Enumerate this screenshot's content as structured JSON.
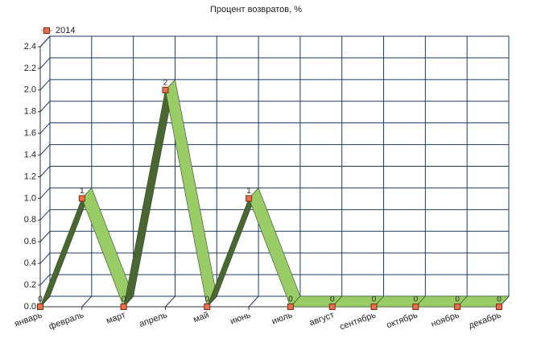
{
  "chart_data": {
    "type": "line3d",
    "title": "Процент возвратов, %",
    "categories": [
      "январь",
      "февраль",
      "март",
      "апрель",
      "май",
      "июнь",
      "июль",
      "август",
      "сентябрь",
      "октябрь",
      "ноябрь",
      "декабрь"
    ],
    "series": [
      {
        "name": "2014",
        "color": "#99cc66",
        "shade_color": "#4a6632",
        "marker_color": "#e8704c",
        "values": [
          0,
          1,
          0,
          2,
          0,
          1,
          0,
          0,
          0,
          0,
          0,
          0
        ]
      }
    ],
    "ylim": [
      0,
      2.4
    ],
    "yticks": [
      {
        "value": 0,
        "label": "0.0"
      },
      0.2,
      0.4,
      0.6,
      0.8,
      {
        "value": 1,
        "label": "1.0"
      },
      1.2,
      1.4,
      1.6,
      1.8,
      {
        "value": 2,
        "label": "2.0"
      },
      2.2,
      2.4
    ],
    "grid": true,
    "legend": "top-left"
  }
}
